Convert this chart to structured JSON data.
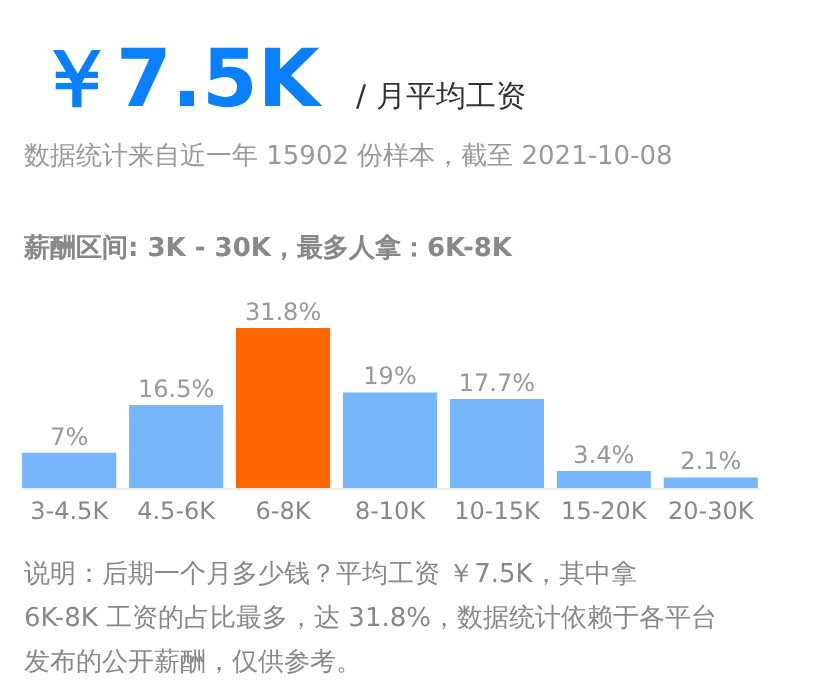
{
  "chart_data": {
    "type": "bar",
    "title": "￥7.5K",
    "subtitle": "/ 月平均工资",
    "annotations": [
      "数据统计来自近一年 15902 份样本，截至 2021-10-08",
      "薪酬区间: 3K - 30K，最多人拿：6K-8K",
      "说明：后期一个月多少钱？平均工资 ￥7.5K，其中拿 6K-8K 工资的占比最多，达 31.8%，数据统计依赖于各平台发布的公开薪酬，仅供参考。"
    ],
    "categories": [
      "3-4.5K",
      "4.5-6K",
      "6-8K",
      "8-10K",
      "10-15K",
      "15-20K",
      "20-30K"
    ],
    "values": [
      7,
      16.5,
      31.8,
      19,
      17.7,
      3.4,
      2.1
    ],
    "value_labels": [
      "7%",
      "16.5%",
      "31.8%",
      "19%",
      "17.7%",
      "3.4%",
      "2.1%"
    ],
    "colors": [
      "#77b6fd",
      "#77b6fd",
      "#ff6600",
      "#77b6fd",
      "#77b6fd",
      "#77b6fd",
      "#77b6fd"
    ]
  }
}
